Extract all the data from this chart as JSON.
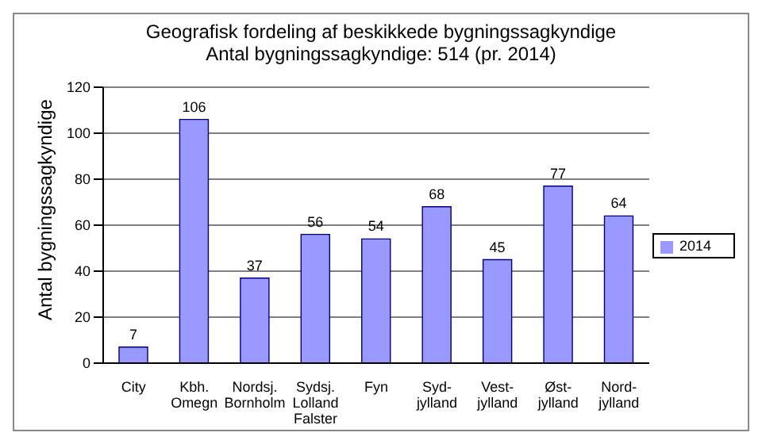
{
  "chart_data": {
    "type": "bar",
    "title": "Geografisk fordeling af beskikkede bygningssagkyndige",
    "subtitle": "Antal bygningssagkyndige: 514 (pr. 2014)",
    "ylabel": "Antal bygningssagkyndige",
    "categories": [
      "City",
      "Kbh. Omegn",
      "Nordsj. Bornholm",
      "Sydsj. Lolland Falster",
      "Fyn",
      "Syd-jylland",
      "Vest-jylland",
      "Øst-jylland",
      "Nord-jylland"
    ],
    "series": [
      {
        "name": "2014",
        "color": "#9999ff",
        "values": [
          7,
          106,
          37,
          56,
          54,
          68,
          45,
          77,
          64
        ]
      }
    ],
    "ylim": [
      0,
      120
    ],
    "yticks": [
      0,
      20,
      40,
      60,
      80,
      100,
      120
    ],
    "grid": "y",
    "legend": "right",
    "data_labels": true
  }
}
